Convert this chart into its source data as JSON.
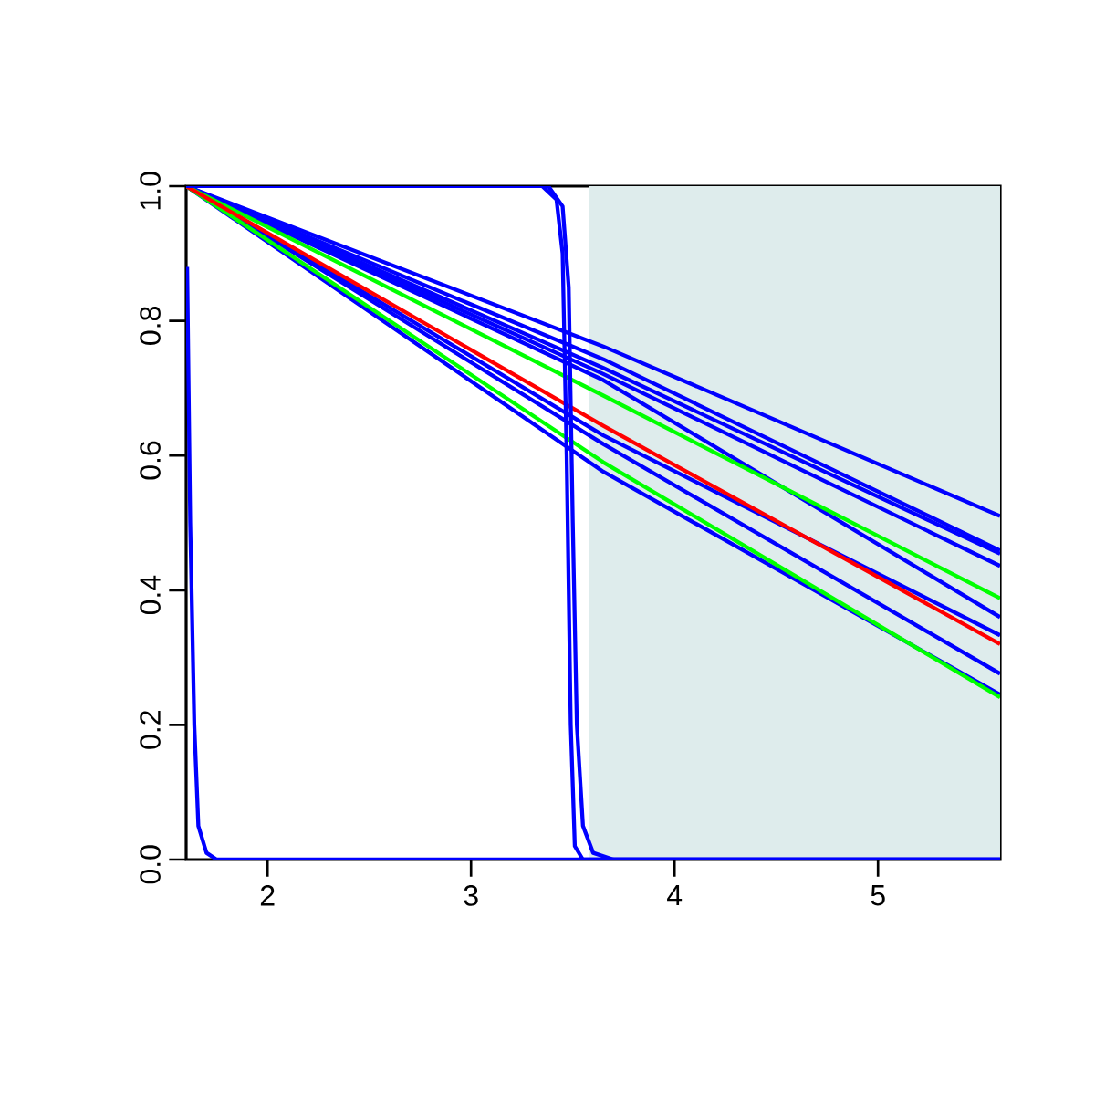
{
  "chart_data": {
    "type": "line",
    "xlim": [
      1.6,
      5.6
    ],
    "ylim": [
      0,
      1
    ],
    "xticks": [
      2,
      3,
      4,
      5
    ],
    "yticks": [
      {
        "value": 0,
        "label": "0.0"
      },
      {
        "value": 0.2,
        "label": "0.2"
      },
      {
        "value": 0.4,
        "label": "0.4"
      },
      {
        "value": 0.6,
        "label": "0.6"
      },
      {
        "value": 0.8,
        "label": "0.8"
      },
      {
        "value": 1,
        "label": "1.0"
      }
    ],
    "grid": false,
    "marker": "none",
    "line_style": "solid",
    "bands": [
      {
        "axis": "x",
        "from": 3.58,
        "to": 5.6,
        "color": "#deecec"
      }
    ],
    "series": [
      {
        "color": "#0000ff",
        "x": [
          1.6,
          3.65,
          5.6
        ],
        "values": [
          1,
          0.762,
          0.51
        ]
      },
      {
        "color": "#0000ff",
        "x": [
          1.6,
          3.65,
          5.6
        ],
        "values": [
          1,
          0.743,
          0.459
        ]
      },
      {
        "color": "#0000ff",
        "x": [
          1.6,
          3.65,
          5.6
        ],
        "values": [
          1,
          0.73,
          0.454
        ]
      },
      {
        "color": "#0000ff",
        "x": [
          1.6,
          3.65,
          5.6
        ],
        "values": [
          1,
          0.721,
          0.436
        ]
      },
      {
        "color": "#0000ff",
        "x": [
          1.6,
          3.65,
          5.6
        ],
        "values": [
          1,
          0.712,
          0.36
        ]
      },
      {
        "color": "#0000ff",
        "x": [
          1.6,
          3.65,
          5.6
        ],
        "values": [
          1,
          0.63,
          0.333
        ]
      },
      {
        "color": "#0000ff",
        "x": [
          1.6,
          3.65,
          5.6
        ],
        "values": [
          1,
          0.617,
          0.276
        ]
      },
      {
        "color": "#0000ff",
        "x": [
          1.6,
          3.65,
          5.6
        ],
        "values": [
          1,
          0.576,
          0.245
        ]
      },
      {
        "color": "#00ff00",
        "x": [
          1.6,
          3.65,
          5.6
        ],
        "values": [
          1,
          0.689,
          0.388
        ]
      },
      {
        "color": "#00ff00",
        "x": [
          1.6,
          3.65,
          5.6
        ],
        "values": [
          1,
          0.59,
          0.241
        ]
      },
      {
        "color": "#ff0000",
        "x": [
          1.6,
          3.65,
          5.6
        ],
        "values": [
          1,
          0.644,
          0.32
        ]
      },
      {
        "color": "#0000ff",
        "x": [
          1.605,
          1.62,
          1.64,
          1.66,
          1.7,
          1.75,
          5.6
        ],
        "values": [
          0.88,
          0.5,
          0.2,
          0.05,
          0.01,
          0,
          0
        ]
      },
      {
        "color": "#0000ff",
        "x": [
          1.6,
          3.35,
          3.42,
          3.45,
          3.47,
          3.49,
          3.51,
          3.55,
          5.6
        ],
        "values": [
          1,
          1,
          0.98,
          0.9,
          0.6,
          0.2,
          0.02,
          0,
          0
        ]
      },
      {
        "color": "#0000ff",
        "x": [
          1.6,
          3.38,
          3.45,
          3.48,
          3.5,
          3.52,
          3.55,
          3.6,
          3.7,
          5.6
        ],
        "values": [
          1,
          1,
          0.97,
          0.85,
          0.5,
          0.2,
          0.05,
          0.01,
          0,
          0
        ]
      }
    ]
  }
}
